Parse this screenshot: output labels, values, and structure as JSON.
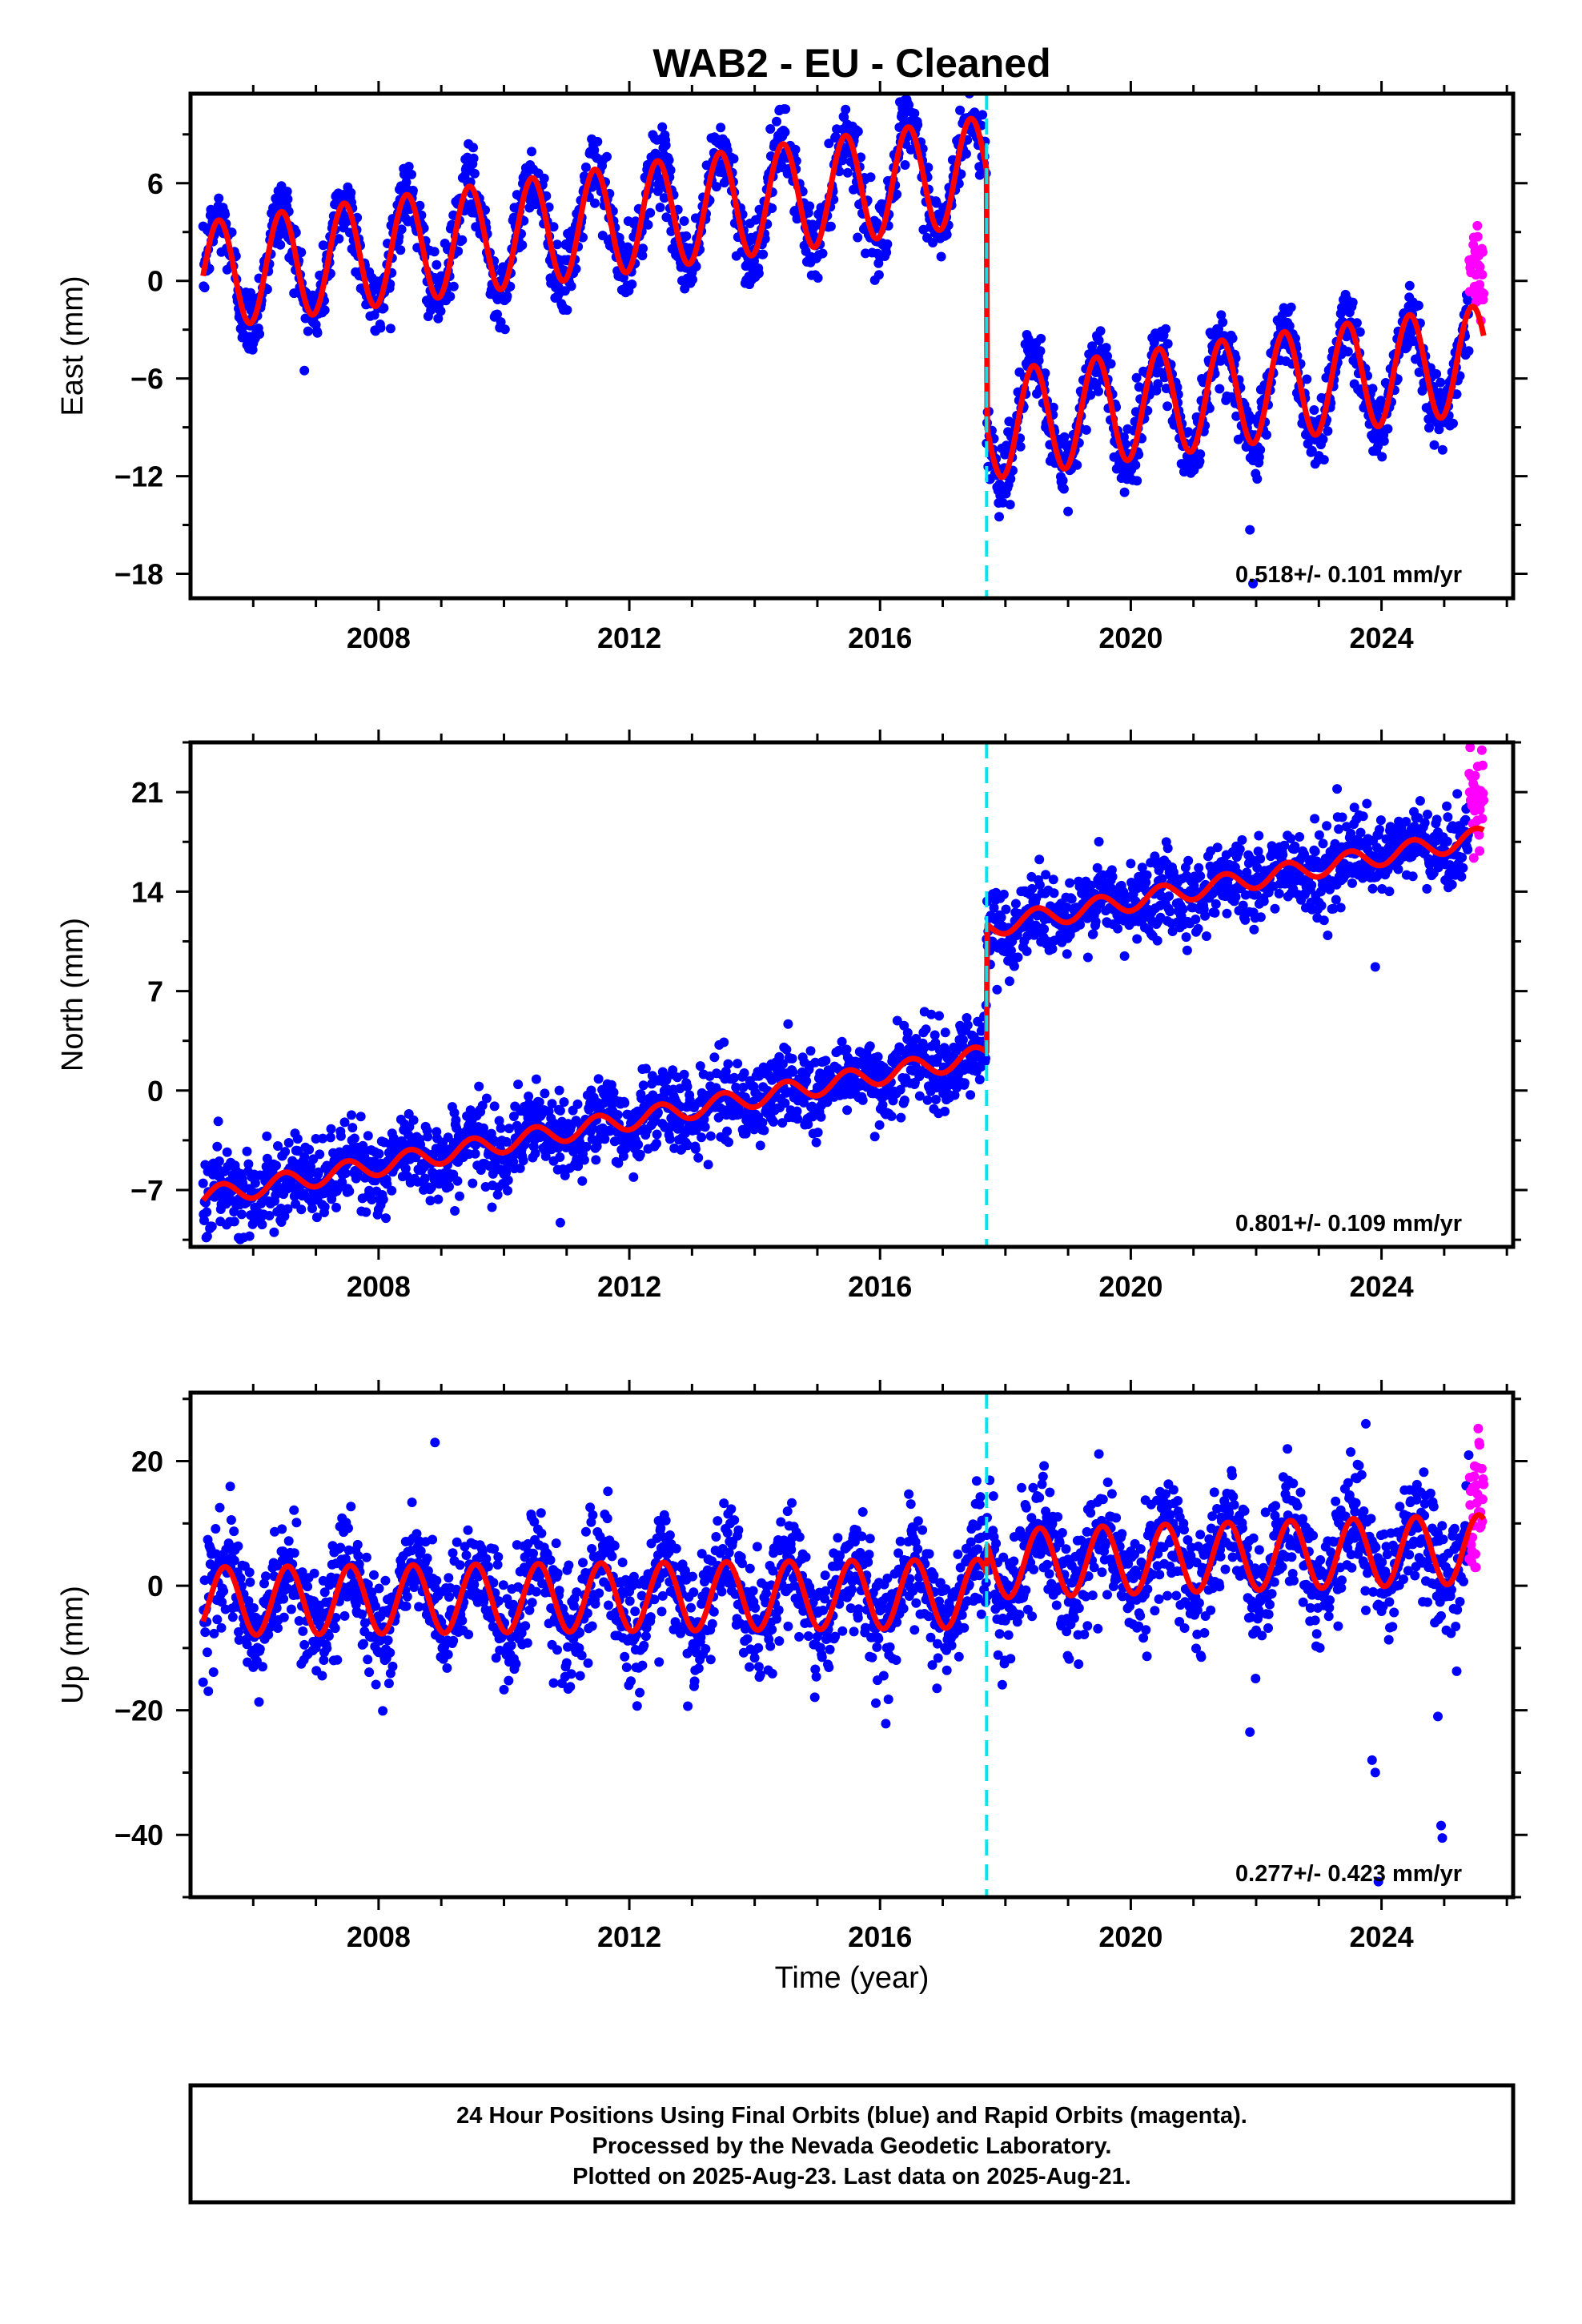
{
  "title": "WAB2  - EU - Cleaned",
  "xlabel": "Time (year)",
  "footer": {
    "line1": "24 Hour Positions Using Final Orbits (blue) and Rapid Orbits (magenta).",
    "line2": "Processed by the Nevada Geodetic Laboratory.",
    "line3": "Plotted on 2025-Aug-23. Last data on 2025-Aug-21."
  },
  "colors": {
    "final_orbits": "#0000ff",
    "rapid_orbits": "#ff00ff",
    "model_fit": "#ff0000",
    "equipment_change": "#00e5ee",
    "frame": "#000000"
  },
  "chart_data": [
    {
      "type": "scatter",
      "name": "east",
      "ylabel": "East (mm)",
      "xlim": [
        2005.0,
        2026.1
      ],
      "ylim": [
        -19.5,
        11.5
      ],
      "x_ticks": [
        "2008",
        "2012",
        "2016",
        "2020",
        "2024"
      ],
      "y_ticks": [
        6,
        0,
        -6,
        -12,
        -18
      ],
      "y_tick_labels": [
        "6",
        "0",
        "−6",
        "−12",
        "−18"
      ],
      "rate_text": "0.518+/- 0.101 mm/yr",
      "equipment_change_year": 2017.7,
      "data_start": 2005.2,
      "rapid_start": 2025.4,
      "data_end": 2025.63,
      "model": {
        "segments": [
          {
            "start": 2005.2,
            "end": 2017.7,
            "offset_at_start": 0.3,
            "rate_mm_per_yr": 0.52,
            "annual_amplitude": 3.3
          },
          {
            "start": 2017.7,
            "end": 2025.63,
            "offset_at_start": -8.9,
            "rate_mm_per_yr": 0.52,
            "annual_amplitude": 3.3
          }
        ],
        "phase_peak_fraction_of_year": 0.45
      },
      "scatter_noise_mm": 1.1,
      "outliers": [
        {
          "x": 2021.9,
          "y": -15.3
        },
        {
          "x": 2021.95,
          "y": -18.6
        }
      ]
    },
    {
      "type": "scatter",
      "name": "north",
      "ylabel": "North (mm)",
      "xlim": [
        2005.0,
        2026.1
      ],
      "ylim": [
        -11,
        24.5
      ],
      "x_ticks": [
        "2008",
        "2012",
        "2016",
        "2020",
        "2024"
      ],
      "y_ticks": [
        21,
        14,
        7,
        0,
        -7
      ],
      "y_tick_labels": [
        "21",
        "14",
        "7",
        "0",
        "−7"
      ],
      "rate_text": "0.801+/- 0.109 mm/yr",
      "equipment_change_year": 2017.7,
      "data_start": 2005.2,
      "rapid_start": 2025.4,
      "data_end": 2025.63,
      "model": {
        "segments": [
          {
            "start": 2005.2,
            "end": 2017.7,
            "offset_at_start": -7.5,
            "rate_mm_per_yr": 0.8,
            "annual_amplitude": 0.7
          },
          {
            "start": 2017.7,
            "end": 2025.63,
            "offset_at_start": 11.5,
            "rate_mm_per_yr": 0.8,
            "annual_amplitude": 0.7
          }
        ],
        "phase_peak_fraction_of_year": 0.5
      },
      "scatter_noise_mm": 1.4,
      "outliers": [
        {
          "x": 2023.9,
          "y": 8.7
        },
        {
          "x": 2010.9,
          "y": -9.3
        }
      ]
    },
    {
      "type": "scatter",
      "name": "up",
      "ylabel": "Up (mm)",
      "xlim": [
        2005.0,
        2026.1
      ],
      "ylim": [
        -50,
        31
      ],
      "x_ticks": [
        "2008",
        "2012",
        "2016",
        "2020",
        "2024"
      ],
      "y_ticks": [
        20,
        0,
        -20,
        -40
      ],
      "y_tick_labels": [
        "20",
        "0",
        "−20",
        "−40"
      ],
      "rate_text": "0.277+/- 0.423 mm/yr",
      "equipment_change_year": 2017.7,
      "data_start": 2005.2,
      "rapid_start": 2025.4,
      "data_end": 2025.63,
      "model": {
        "segments": [
          {
            "start": 2005.2,
            "end": 2017.7,
            "offset_at_start": -2.5,
            "rate_mm_per_yr": 0.1,
            "annual_amplitude": 5.5
          },
          {
            "start": 2017.7,
            "end": 2025.63,
            "offset_at_start": 3.5,
            "rate_mm_per_yr": 0.3,
            "annual_amplitude": 5.5
          }
        ],
        "phase_peak_fraction_of_year": 0.55
      },
      "scatter_noise_mm": 4.5,
      "outliers": [
        {
          "x": 2021.9,
          "y": -23.5
        },
        {
          "x": 2023.85,
          "y": -28
        },
        {
          "x": 2023.9,
          "y": -30
        },
        {
          "x": 2024.9,
          "y": -21
        },
        {
          "x": 2024.95,
          "y": -38.5
        },
        {
          "x": 2024.97,
          "y": -40.5
        },
        {
          "x": 2023.95,
          "y": -47.5
        },
        {
          "x": 2008.9,
          "y": 23
        },
        {
          "x": 2023.75,
          "y": 26
        }
      ]
    }
  ]
}
